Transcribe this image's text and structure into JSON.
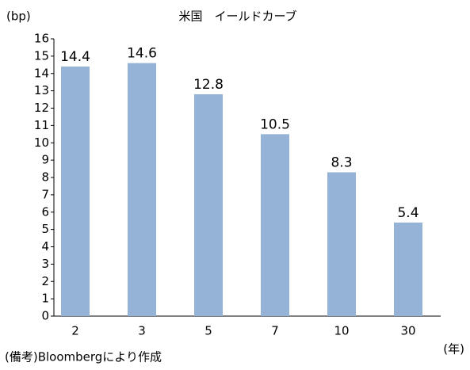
{
  "chart_data": {
    "type": "bar",
    "title": "米国　イールドカーブ",
    "y_label": "(bp)",
    "x_label": "(年)",
    "note": "(備考)Bloombergにより作成",
    "categories": [
      "2",
      "3",
      "5",
      "7",
      "10",
      "30"
    ],
    "values": [
      14.4,
      14.6,
      12.8,
      10.5,
      8.3,
      5.4
    ],
    "color": "#95b3d7",
    "ylim": [
      0,
      16
    ],
    "yticks": [
      0,
      1,
      2,
      3,
      4,
      5,
      6,
      7,
      8,
      9,
      10,
      11,
      12,
      13,
      14,
      15,
      16
    ],
    "grid": false,
    "data_labels": true
  }
}
